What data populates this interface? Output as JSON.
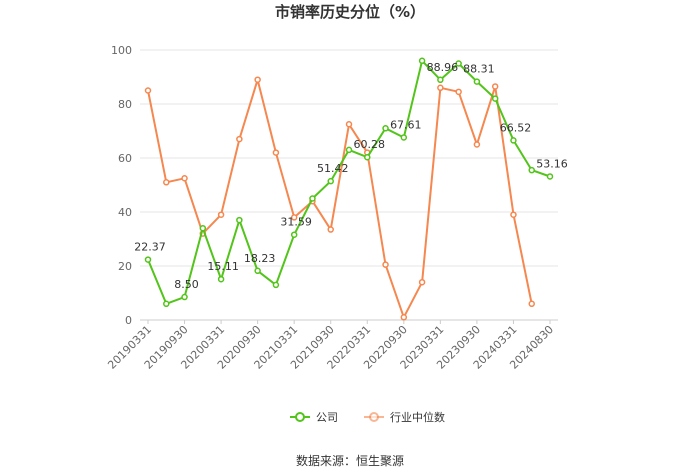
{
  "chart_data": {
    "type": "line",
    "title": "市销率历史分位（%）",
    "ylim": [
      0,
      100
    ],
    "yticks": [
      0,
      20,
      40,
      60,
      80,
      100
    ],
    "grid": true,
    "legend_position": "bottom",
    "x": [
      "20190331",
      "20190630",
      "20190930",
      "20191231",
      "20200331",
      "20200630",
      "20200930",
      "20201231",
      "20210331",
      "20210630",
      "20210930",
      "20211231",
      "20220331",
      "20220630",
      "20220930",
      "20221231",
      "20230331",
      "20230630",
      "20230930",
      "20231231",
      "20240331",
      "20240630",
      "20240830"
    ],
    "xtick_labels": [
      "20190331",
      "20190930",
      "20200331",
      "20200930",
      "20210331",
      "20210930",
      "20220331",
      "20220930",
      "20230331",
      "20230930",
      "20240331",
      "20240830"
    ],
    "series": [
      {
        "name": "公司",
        "color": "#52c41a",
        "values": [
          22.37,
          6,
          8.5,
          34,
          15.11,
          37,
          18.23,
          13,
          31.59,
          45,
          51.42,
          63,
          60.28,
          71,
          67.61,
          96,
          88.96,
          95,
          88.31,
          82,
          66.52,
          55.5,
          53.16
        ],
        "labels": [
          "22.37",
          "",
          "8.50",
          "",
          "15.11",
          "",
          "18.23",
          "",
          "31.59",
          "",
          "51.42",
          "",
          "60.28",
          "",
          "67.61",
          "",
          "88.96",
          "",
          "88.31",
          "",
          "66.52",
          "",
          "53.16"
        ]
      },
      {
        "name": "行业中位数",
        "color": "#f5874f",
        "values": [
          85,
          51,
          52.5,
          32,
          39,
          67,
          89,
          62,
          38,
          44,
          33.5,
          72.5,
          62,
          20.5,
          1,
          14,
          86,
          84.5,
          65,
          86.5,
          39,
          6,
          null
        ]
      }
    ]
  },
  "source_text": "数据来源：恒生聚源"
}
